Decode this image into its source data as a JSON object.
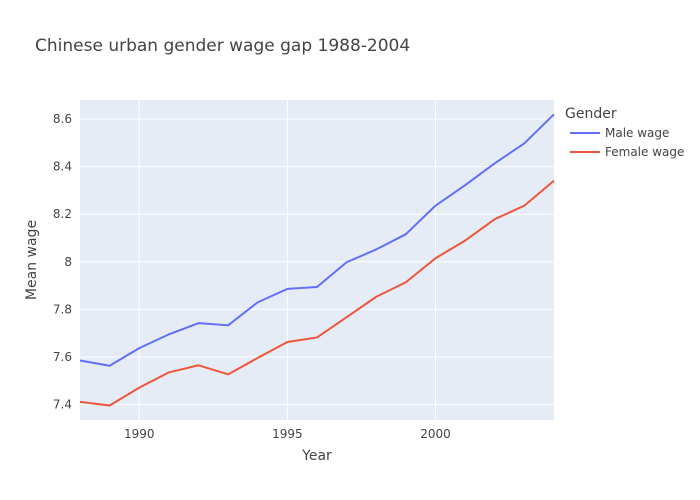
{
  "chart_data": {
    "type": "line",
    "title": "Chinese urban gender wage gap 1988-2004",
    "xlabel": "Year",
    "ylabel": "Mean wage",
    "xlim": [
      1988,
      2004
    ],
    "ylim": [
      7.335,
      8.68
    ],
    "x_ticks": [
      1990,
      1995,
      2000
    ],
    "y_ticks": [
      7.4,
      7.6,
      7.8,
      8.0,
      8.2,
      8.4,
      8.6
    ],
    "y_tick_labels": [
      "7.4",
      "7.6",
      "7.8",
      "8",
      "8.2",
      "8.4",
      "8.6"
    ],
    "grid": true,
    "legend_title": "Gender",
    "legend_position": "right",
    "x": [
      1988,
      1989,
      1990,
      1991,
      1992,
      1993,
      1994,
      1995,
      1996,
      1997,
      1998,
      1999,
      2000,
      2001,
      2002,
      2003,
      2004
    ],
    "series": [
      {
        "name": "Male wage",
        "color": "#636efa",
        "values": [
          7.585,
          7.563,
          7.637,
          7.695,
          7.742,
          7.733,
          7.83,
          7.886,
          7.894,
          7.998,
          8.052,
          8.116,
          8.236,
          8.322,
          8.414,
          8.498,
          8.62
        ]
      },
      {
        "name": "Female wage",
        "color": "#ef553b",
        "values": [
          7.411,
          7.396,
          7.471,
          7.535,
          7.565,
          7.527,
          7.596,
          7.663,
          7.682,
          7.767,
          7.853,
          7.914,
          8.015,
          8.089,
          8.179,
          8.236,
          8.341
        ]
      }
    ],
    "colors": {
      "plot_bg": "#e5ecf6",
      "grid": "#ffffff",
      "text": "#444444"
    }
  }
}
